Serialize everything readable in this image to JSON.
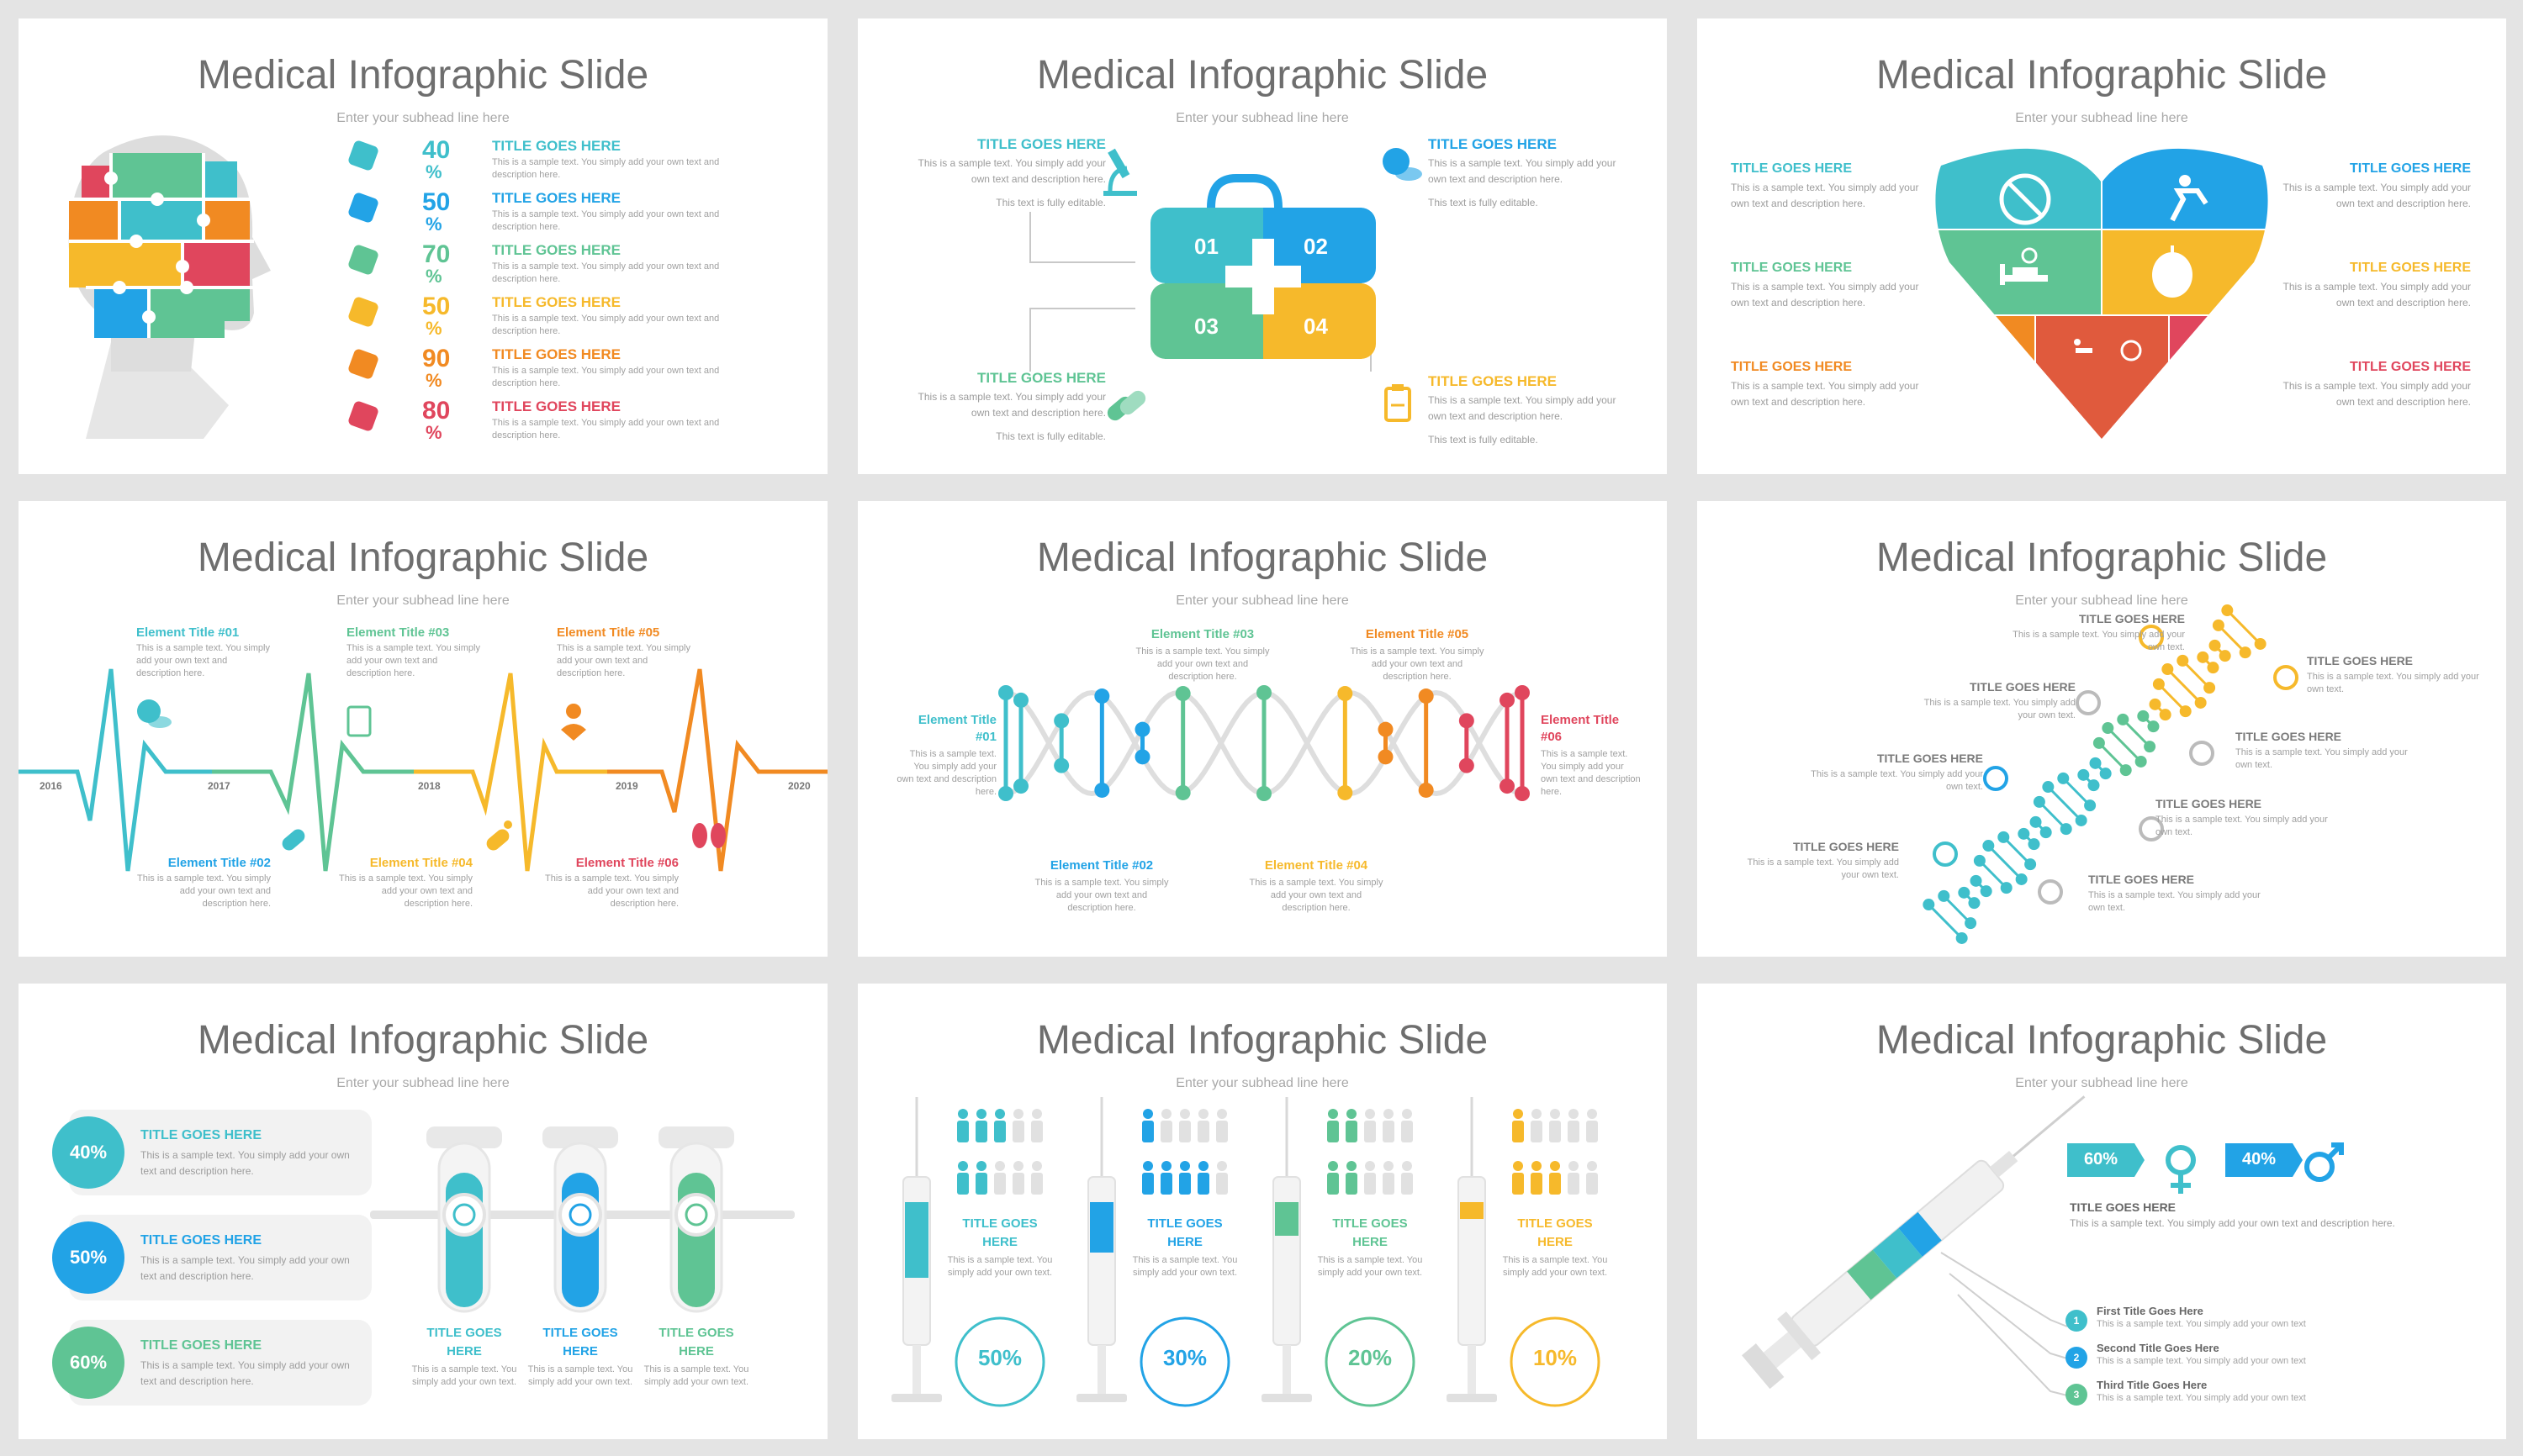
{
  "common": {
    "title": "Medical Infographic Slide",
    "subhead": "Enter your subhead line here",
    "title_caps": "TITLE GOES HERE",
    "sample_short": "This is a sample text. You simply add your own text and description here.",
    "sample_editable": "This text is fully editable."
  },
  "colors": {
    "teal": "#3fbfcb",
    "blue": "#22a3e6",
    "green": "#5fc494",
    "yellow": "#f6b92b",
    "orange": "#f18a22",
    "red": "#e0465d",
    "gray_text": "#6e6e6e"
  },
  "slide1": {
    "items": [
      {
        "pct": "40",
        "title": "TITLE GOES HERE",
        "desc": "This is a sample text. You simply add your own text and description here."
      },
      {
        "pct": "50",
        "title": "TITLE GOES HERE",
        "desc": "This is a sample text. You simply add your own text and description here."
      },
      {
        "pct": "70",
        "title": "TITLE GOES HERE",
        "desc": "This is a sample text. You simply add your own text and description here."
      },
      {
        "pct": "50",
        "title": "TITLE GOES HERE",
        "desc": "This is a sample text. You simply add your own text and description here."
      },
      {
        "pct": "90",
        "title": "TITLE GOES HERE",
        "desc": "This is a sample text. You simply add your own text and description here."
      },
      {
        "pct": "80",
        "title": "TITLE GOES HERE",
        "desc": "This is a sample text. You simply add your own text and description here."
      }
    ],
    "pct_sign": "%"
  },
  "slide2": {
    "numbers": [
      "01",
      "02",
      "03",
      "04"
    ],
    "icons": [
      "microscope-icon",
      "pill-icon",
      "capsule-icon",
      "clipboard-icon"
    ]
  },
  "slide4": {
    "years": [
      "2016",
      "2017",
      "2018",
      "2019",
      "2020"
    ],
    "elements": [
      {
        "title": "Element Title #01",
        "desc": "This is a sample text. You simply add your own text and description here."
      },
      {
        "title": "Element Title #02",
        "desc": "This is a sample text. You simply add your own text and description here."
      },
      {
        "title": "Element Title #03",
        "desc": "This is a sample text. You simply add your own text and description here."
      },
      {
        "title": "Element Title #04",
        "desc": "This is a sample text. You simply add your own text and description here."
      },
      {
        "title": "Element Title #05",
        "desc": "This is a sample text. You simply add your own text and description here."
      },
      {
        "title": "Element Title #06",
        "desc": "This is a sample text. You simply add your own text and description here."
      }
    ]
  },
  "slide5": {
    "left_title_1": "Element Title",
    "left_title_2": "#01",
    "right_title_1": "Element Title",
    "right_title_2": "#06",
    "el2": "Element Title #02",
    "el3": "Element Title #03",
    "el4": "Element Title #04",
    "el5": "Element Title #05",
    "desc": "This is a sample text. You simply add your own text and description here.",
    "side_desc": "This is a sample text. You simply add your own text and description here."
  },
  "slide6": {
    "desc": "This is a sample text. You simply add your own text."
  },
  "slide7": {
    "pcts": [
      "40%",
      "50%",
      "60%"
    ],
    "tube_title": "TITLE GOES HERE",
    "tube_desc": "This is a sample text. You simply add your own text."
  },
  "slide8": {
    "pcts": [
      "50%",
      "30%",
      "20%",
      "10%"
    ],
    "title": "TITLE GOES HERE",
    "desc": "This is a sample text. You simply add your own text."
  },
  "slide9": {
    "female_pct": "60%",
    "male_pct": "40%",
    "title": "TITLE GOES HERE",
    "desc": "This is a sample text. You simply add your own text and description here.",
    "steps": [
      {
        "num": "1",
        "title": "First Title Goes Here",
        "desc": "This is a sample text. You simply add your own text"
      },
      {
        "num": "2",
        "title": "Second Title Goes Here",
        "desc": "This is a sample text. You simply add your own text"
      },
      {
        "num": "3",
        "title": "Third Title Goes Here",
        "desc": "This is a sample text. You simply add your own text"
      }
    ]
  }
}
